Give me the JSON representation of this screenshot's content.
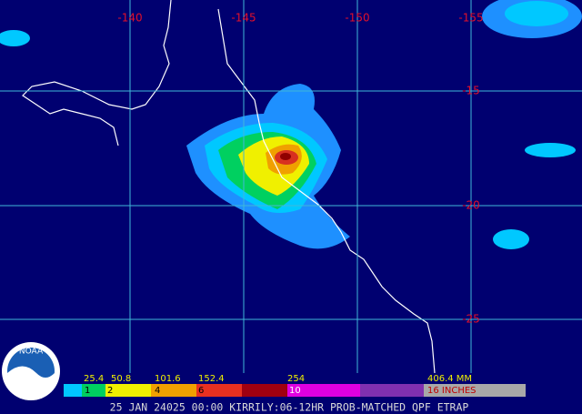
{
  "map": {
    "lon_labels": [
      "-140",
      "-145",
      "-150",
      "-155"
    ],
    "lat_labels": [
      "-15",
      "-20",
      "-25"
    ],
    "legend": {
      "mm_labels": [
        "25.4",
        "50.8",
        "101.6",
        "152.4",
        "254",
        "406.4 MM"
      ],
      "inch_labels": [
        "1",
        "2",
        "4",
        "6",
        "10",
        "16 INCHES"
      ]
    },
    "logo": "NOAA",
    "footer": "25 JAN 24025 00:00 KIRRILY:06-12HR PROB-MATCHED QPF ETRAP"
  }
}
